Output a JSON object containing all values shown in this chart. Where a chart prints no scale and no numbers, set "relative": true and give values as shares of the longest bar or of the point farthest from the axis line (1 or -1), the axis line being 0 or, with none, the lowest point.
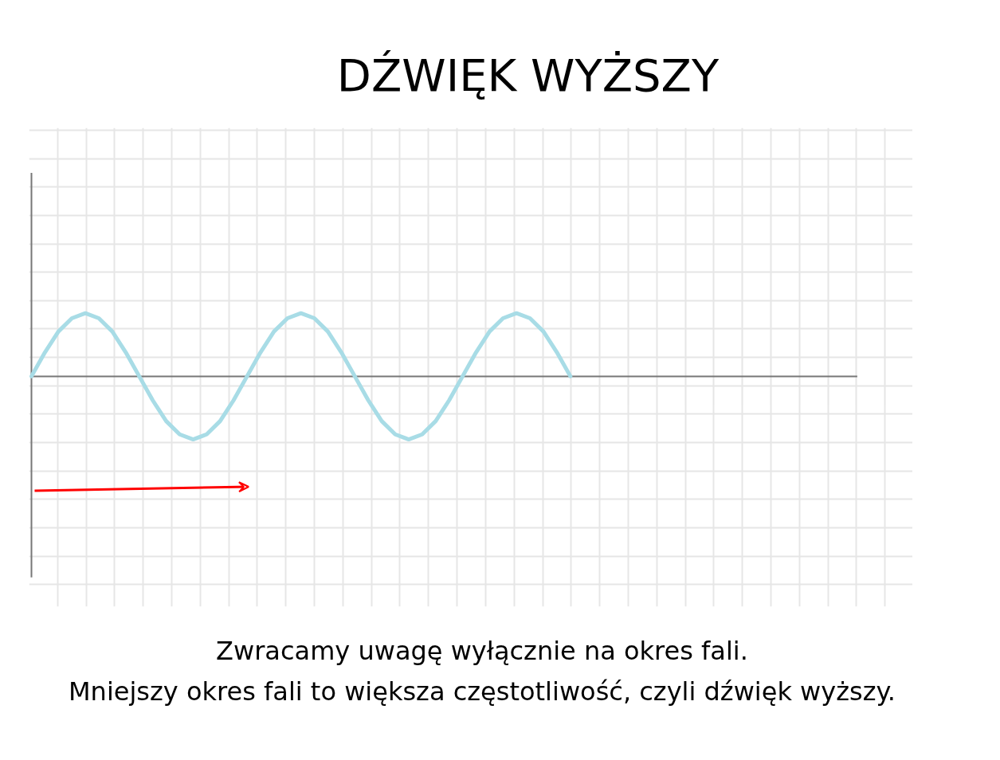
{
  "chart_data": {
    "type": "line",
    "title": "DŹWIĘK WYŻSZY",
    "relative": true,
    "grid": true,
    "tick_labels": false,
    "line_style": "solid",
    "categories": [
      null,
      null,
      null,
      null,
      null,
      null,
      null,
      null,
      null,
      null,
      null,
      null,
      null,
      null,
      null,
      null,
      null,
      null,
      null,
      null,
      null,
      null,
      null,
      null,
      null,
      null,
      null,
      null,
      null,
      null,
      null,
      null,
      null,
      null,
      null,
      null,
      null,
      null,
      null,
      null,
      null
    ],
    "series": [
      {
        "color": "#a8dce6",
        "values": [
          0,
          0.38,
          0.71,
          0.92,
          1,
          0.92,
          0.71,
          0.38,
          0,
          -0.38,
          -0.71,
          -0.92,
          -1,
          -0.92,
          -0.71,
          -0.38,
          0,
          0.38,
          0.71,
          0.92,
          1,
          0.92,
          0.71,
          0.38,
          0,
          -0.38,
          -0.71,
          -0.92,
          -1,
          -0.92,
          -0.71,
          -0.38,
          0,
          0.38,
          0.71,
          0.92,
          1,
          0.92,
          0.71,
          0.38,
          0
        ]
      }
    ],
    "annotations": [
      "Zwracamy uwagę wyłącznie na okres fali.",
      "Mniejszy okres fali to większa częstotliwość, czyli dźwięk wyższy."
    ]
  }
}
